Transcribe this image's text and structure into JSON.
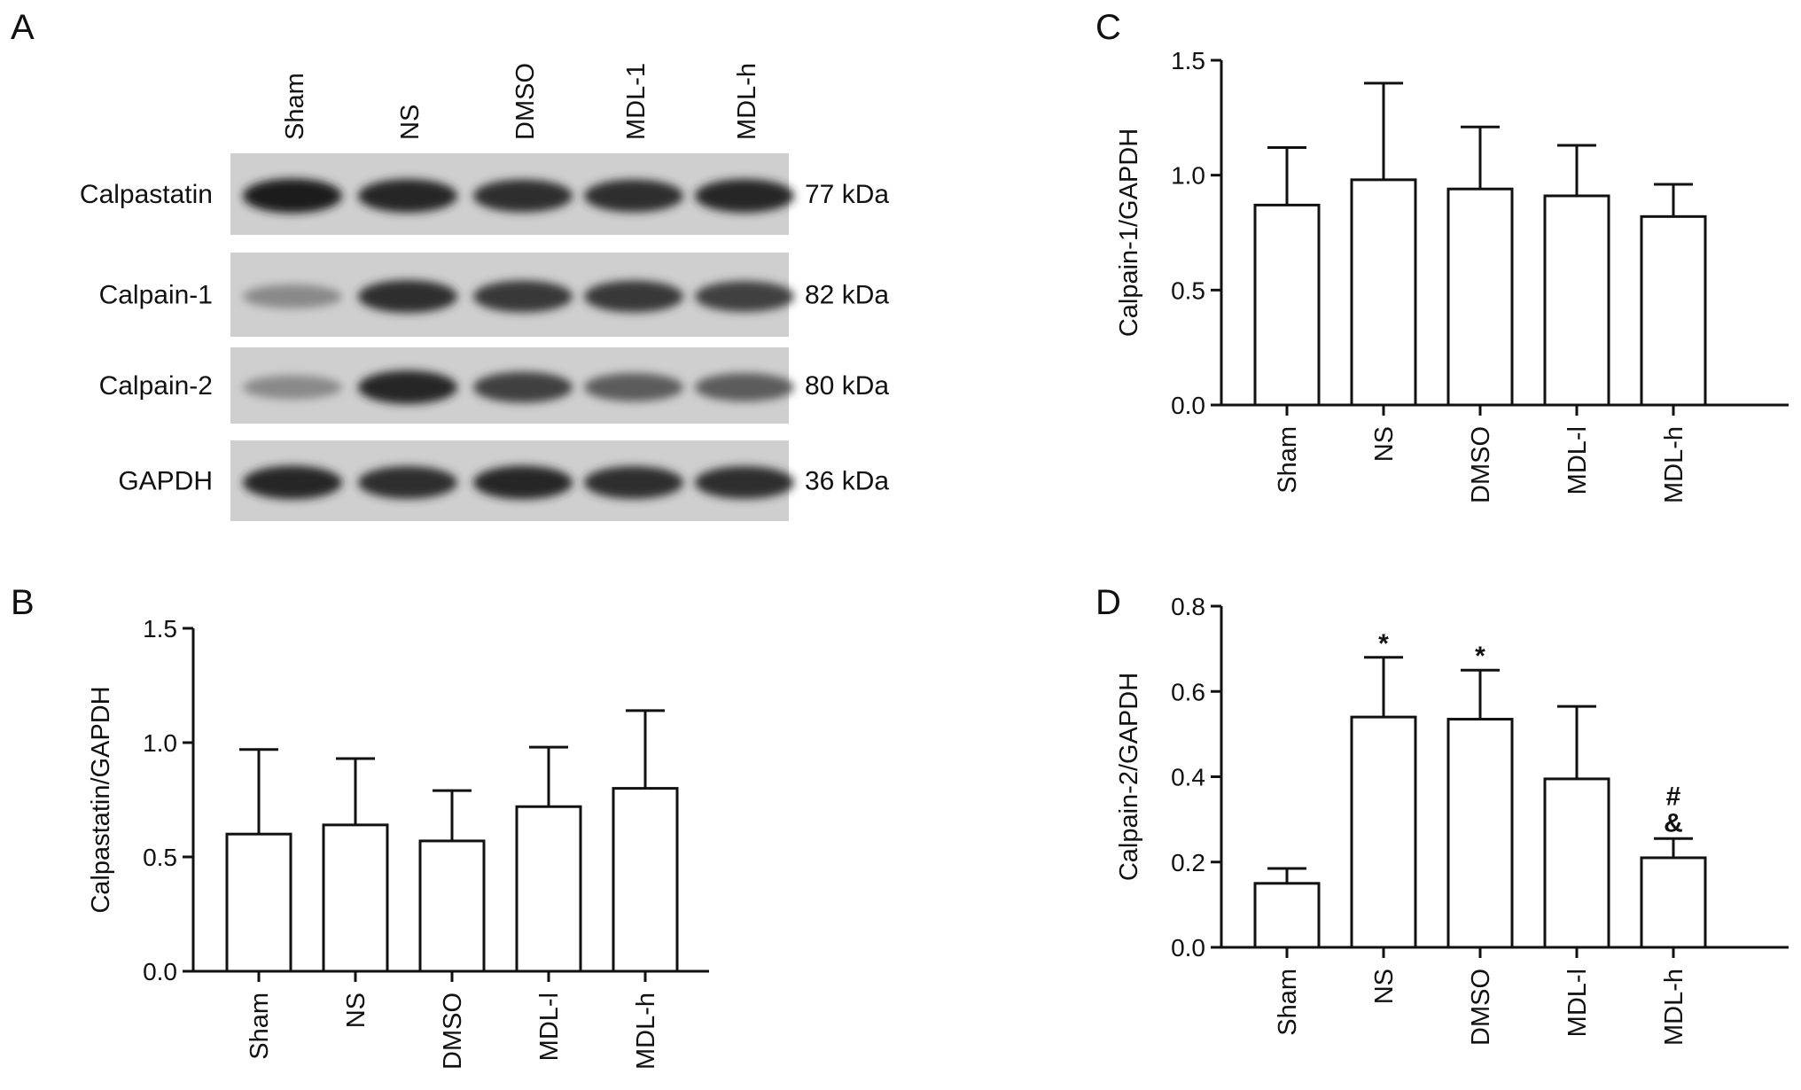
{
  "panels": {
    "A": "A",
    "B": "B",
    "C": "C",
    "D": "D"
  },
  "blot": {
    "lanes": [
      "Sham",
      "NS",
      "DMSO",
      "MDL-1",
      "MDL-h"
    ],
    "rows": [
      {
        "protein": "Calpastatin",
        "weight": "77 kDa",
        "intensities": [
          0.95,
          0.9,
          0.85,
          0.85,
          0.9
        ]
      },
      {
        "protein": "Calpain-1",
        "weight": "82 kDa",
        "intensities": [
          0.35,
          0.85,
          0.8,
          0.8,
          0.75
        ]
      },
      {
        "protein": "Calpain-2",
        "weight": "80 kDa",
        "intensities": [
          0.35,
          0.9,
          0.75,
          0.6,
          0.6
        ]
      },
      {
        "protein": "GAPDH",
        "weight": "36 kDa",
        "intensities": [
          0.9,
          0.85,
          0.9,
          0.85,
          0.85
        ]
      }
    ]
  },
  "chart_data": [
    {
      "panel": "B",
      "type": "bar",
      "categories": [
        "Sham",
        "NS",
        "DMSO",
        "MDL-l",
        "MDL-h"
      ],
      "values": [
        0.6,
        0.64,
        0.57,
        0.72,
        0.8
      ],
      "errors": [
        0.37,
        0.29,
        0.22,
        0.26,
        0.34
      ],
      "annotations": [
        "",
        "",
        "",
        "",
        ""
      ],
      "ylabel": "Calpastatin/GAPDH",
      "ylim": [
        0,
        1.5
      ],
      "yticks": [
        "0.0",
        "0.5",
        "1.0",
        "1.5"
      ]
    },
    {
      "panel": "C",
      "type": "bar",
      "categories": [
        "Sham",
        "NS",
        "DMSO",
        "MDL-l",
        "MDL-h"
      ],
      "values": [
        0.87,
        0.98,
        0.94,
        0.91,
        0.82
      ],
      "errors": [
        0.25,
        0.42,
        0.27,
        0.22,
        0.14
      ],
      "annotations": [
        "",
        "",
        "",
        "",
        ""
      ],
      "ylabel": "Calpain-1/GAPDH",
      "ylim": [
        0,
        1.5
      ],
      "yticks": [
        "0.0",
        "0.5",
        "1.0",
        "1.5"
      ]
    },
    {
      "panel": "D",
      "type": "bar",
      "categories": [
        "Sham",
        "NS",
        "DMSO",
        "MDL-l",
        "MDL-h"
      ],
      "values": [
        0.15,
        0.54,
        0.535,
        0.395,
        0.21
      ],
      "errors": [
        0.035,
        0.14,
        0.115,
        0.17,
        0.045
      ],
      "annotations": [
        "",
        "*",
        "*",
        "",
        "#&"
      ],
      "ylabel": "Calpain-2/GAPDH",
      "ylim": [
        0,
        0.8
      ],
      "yticks": [
        "0.0",
        "0.2",
        "0.4",
        "0.6",
        "0.8"
      ]
    }
  ]
}
